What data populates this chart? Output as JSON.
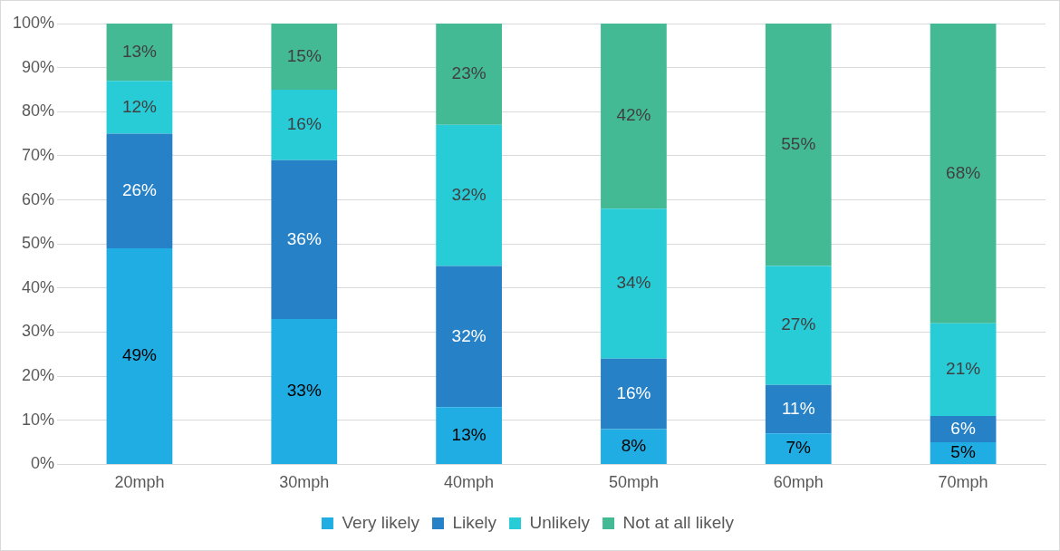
{
  "chart_data": {
    "type": "bar",
    "stacked": true,
    "categories": [
      "20mph",
      "30mph",
      "40mph",
      "50mph",
      "60mph",
      "70mph"
    ],
    "series": [
      {
        "name": "Very likely",
        "color": "#1fade3",
        "values": [
          49,
          33,
          13,
          8,
          7,
          5
        ],
        "value_labels": [
          "49%",
          "33%",
          "13%",
          "8%",
          "7%",
          "5%"
        ]
      },
      {
        "name": "Likely",
        "color": "#2781c7",
        "values": [
          26,
          36,
          32,
          16,
          11,
          6
        ],
        "value_labels": [
          "26%",
          "36%",
          "32%",
          "16%",
          "11%",
          "6%"
        ]
      },
      {
        "name": "Unlikely",
        "color": "#28ccd7",
        "values": [
          12,
          16,
          32,
          34,
          27,
          21
        ],
        "value_labels": [
          "12%",
          "16%",
          "32%",
          "34%",
          "27%",
          "21%"
        ]
      },
      {
        "name": "Not at all likely",
        "color": "#43ba94",
        "values": [
          13,
          15,
          23,
          42,
          55,
          68
        ],
        "value_labels": [
          "13%",
          "15%",
          "23%",
          "42%",
          "55%",
          "68%"
        ]
      }
    ],
    "ylim": [
      0,
      100
    ],
    "yticks": [
      {
        "value": 0,
        "label": "0%"
      },
      {
        "value": 10,
        "label": "10%"
      },
      {
        "value": 20,
        "label": "20%"
      },
      {
        "value": 30,
        "label": "30%"
      },
      {
        "value": 40,
        "label": "40%"
      },
      {
        "value": 50,
        "label": "50%"
      },
      {
        "value": 60,
        "label": "60%"
      },
      {
        "value": 70,
        "label": "70%"
      },
      {
        "value": 80,
        "label": "80%"
      },
      {
        "value": 90,
        "label": "90%"
      },
      {
        "value": 100,
        "label": "100%"
      }
    ],
    "grid": "y",
    "legend": "bottom"
  }
}
